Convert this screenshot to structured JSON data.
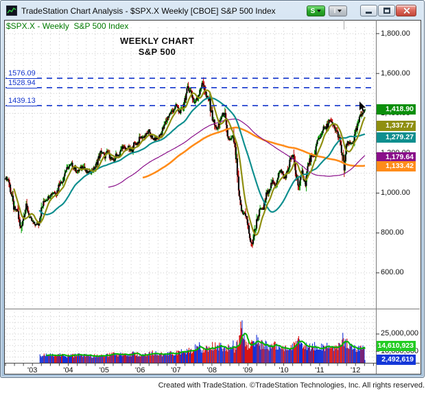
{
  "window": {
    "title": "TradeStation Chart Analysis - $SPX.X Weekly [CBOE] S&P 500 Index",
    "symbol_button_label": "S",
    "interval_button_label": "I"
  },
  "header": {
    "text": "$SPX.X - Weekly  S&P 500 Index"
  },
  "annotation": {
    "line1": "WEEKLY CHART",
    "line2": "S&P 500"
  },
  "levels": [
    {
      "label": "1576.09",
      "value": 1576.09
    },
    {
      "label": "1528.94",
      "value": 1528.94
    },
    {
      "label": "1439.13",
      "value": 1439.13
    }
  ],
  "y_axis": {
    "price_ticks": [
      {
        "label": "1,800.00",
        "value": 1800
      },
      {
        "label": "1,600.00",
        "value": 1600
      },
      {
        "label": "1,400.00",
        "value": 1400
      },
      {
        "label": "1,200.00",
        "value": 1200
      },
      {
        "label": "1,000.00",
        "value": 1000
      },
      {
        "label": "800.00",
        "value": 800
      },
      {
        "label": "600.00",
        "value": 600
      }
    ],
    "volume_ticks": [
      {
        "label": "25,000,000",
        "value_millions": 25
      },
      {
        "label": "10,000,000",
        "value_millions": 10
      }
    ]
  },
  "price_badges": [
    {
      "label": "1,418.90",
      "value": 1418.9,
      "color": "#0b8f0b"
    },
    {
      "label": "1,337.77",
      "value": 1337.77,
      "color": "#8f8f10"
    },
    {
      "label": "1,279.27",
      "value": 1279.27,
      "color": "#0f8f8f"
    },
    {
      "label": "1,179.64",
      "value": 1179.64,
      "color": "#8a0f8a"
    },
    {
      "label": "1,133.42",
      "value": 1133.42,
      "color": "#ff8c1a"
    }
  ],
  "volume_badges": [
    {
      "label": "14,610,923",
      "value_millions": 14.610923,
      "color": "#22cc22"
    },
    {
      "label": "2,492,619",
      "value_millions": 2.492619,
      "color": "#1437d8"
    }
  ],
  "x_axis": {
    "labels": [
      "'03",
      "'04",
      "'05",
      "'06",
      "'07",
      "'08",
      "'09",
      "'10",
      "'11",
      "'12"
    ]
  },
  "footer": {
    "text": "Created with TradeStation. ©TradeStation Technologies, Inc. All rights reserved."
  },
  "chart_data": {
    "type": "candlestick",
    "symbol": "$SPX.X",
    "interval": "Weekly",
    "description": "S&P 500 Index",
    "panes": [
      "price",
      "volume"
    ],
    "x_range": [
      "2002-04",
      "2012-04"
    ],
    "price_axis_ticks": [
      1800,
      1600,
      1400,
      1200,
      1000,
      800,
      600
    ],
    "volume_axis_ticks": [
      25000000,
      10000000
    ],
    "horizontal_levels": [
      1576.09,
      1528.94,
      1439.13
    ],
    "last_price": 1418.9,
    "last_volume": 2492619,
    "moving_averages": [
      {
        "name": "fast-ma",
        "period_weeks": 13,
        "color": "#8f8f10",
        "width": 2.2,
        "last_value": 1337.77
      },
      {
        "name": "medium-ma",
        "period_weeks": 50,
        "color": "#0f8f8f",
        "width": 2.2,
        "last_value": 1279.27
      },
      {
        "name": "slow-ma",
        "period_weeks": 150,
        "color": "#8a0f8a",
        "width": 1.2,
        "last_value": 1179.64
      },
      {
        "name": "slowest-ma",
        "period_weeks": 200,
        "color": "#ff8c1a",
        "width": 2.6,
        "last_value": 1133.42
      }
    ],
    "volume_ma": {
      "period_weeks": 10,
      "color": "#00b300",
      "last_value": 14610923
    },
    "monthly_closes": {
      "start": "2002-04",
      "values": [
        1077,
        1067,
        990,
        912,
        916,
        815,
        885,
        936,
        880,
        856,
        841,
        848,
        917,
        964,
        975,
        990,
        1008,
        996,
        1051,
        1058,
        1112,
        1131,
        1145,
        1126,
        1107,
        1121,
        1141,
        1102,
        1104,
        1115,
        1130,
        1174,
        1212,
        1181,
        1204,
        1181,
        1157,
        1192,
        1191,
        1234,
        1220,
        1229,
        1207,
        1249,
        1248,
        1280,
        1281,
        1295,
        1311,
        1270,
        1270,
        1277,
        1304,
        1336,
        1378,
        1401,
        1418,
        1438,
        1407,
        1421,
        1482,
        1531,
        1503,
        1455,
        1474,
        1527,
        1553,
        1481,
        1468,
        1379,
        1331,
        1323,
        1386,
        1400,
        1280,
        1267,
        1283,
        1166,
        969,
        896,
        903,
        826,
        730,
        798,
        873,
        919,
        919,
        987,
        1021,
        1057,
        1036,
        1096,
        1115,
        1074,
        1104,
        1169,
        1187,
        1089,
        1031,
        1102,
        1049,
        1141,
        1183,
        1181,
        1258,
        1286,
        1327,
        1326,
        1364,
        1345,
        1321,
        1292,
        1219,
        1131,
        1253,
        1247,
        1258,
        1312,
        1366,
        1408,
        1419
      ]
    },
    "monthly_volume_millions": {
      "start": "2003-03",
      "values": [
        6.2,
        6.4,
        6.6,
        6.5,
        6.3,
        6.0,
        6.2,
        6.5,
        6.3,
        6.1,
        6.6,
        6.4,
        6.6,
        6.7,
        6.2,
        6.1,
        6.0,
        5.9,
        6.1,
        6.5,
        6.7,
        6.4,
        6.9,
        7.0,
        7.3,
        7.2,
        6.8,
        7.0,
        6.9,
        6.8,
        7.4,
        7.8,
        7.5,
        7.0,
        7.9,
        7.7,
        8.2,
        7.9,
        8.8,
        8.5,
        7.7,
        7.5,
        7.9,
        8.3,
        8.5,
        8.1,
        9.4,
        9.9,
        10.6,
        9.9,
        10.4,
        10.8,
        13.2,
        14.0,
        11.8,
        12.0,
        12.9,
        11.0,
        14.2,
        13.0,
        13.8,
        12.4,
        11.6,
        12.8,
        15.4,
        12.2,
        16.4,
        30.0,
        22.0,
        15.0,
        14.4,
        16.2,
        19.5,
        17.5,
        16.0,
        15.2,
        14.4,
        14.8,
        15.0,
        15.2,
        14.0,
        12.6,
        13.0,
        13.8,
        14.2,
        16.0,
        21.0,
        17.0,
        15.0,
        13.8,
        13.6,
        14.0,
        14.4,
        13.2,
        13.4,
        13.0,
        14.2,
        12.8,
        12.4,
        13.0,
        13.8,
        20.5,
        16.5,
        15.0,
        14.0,
        12.6,
        13.2,
        12.8,
        12.4,
        12.0
      ]
    }
  }
}
